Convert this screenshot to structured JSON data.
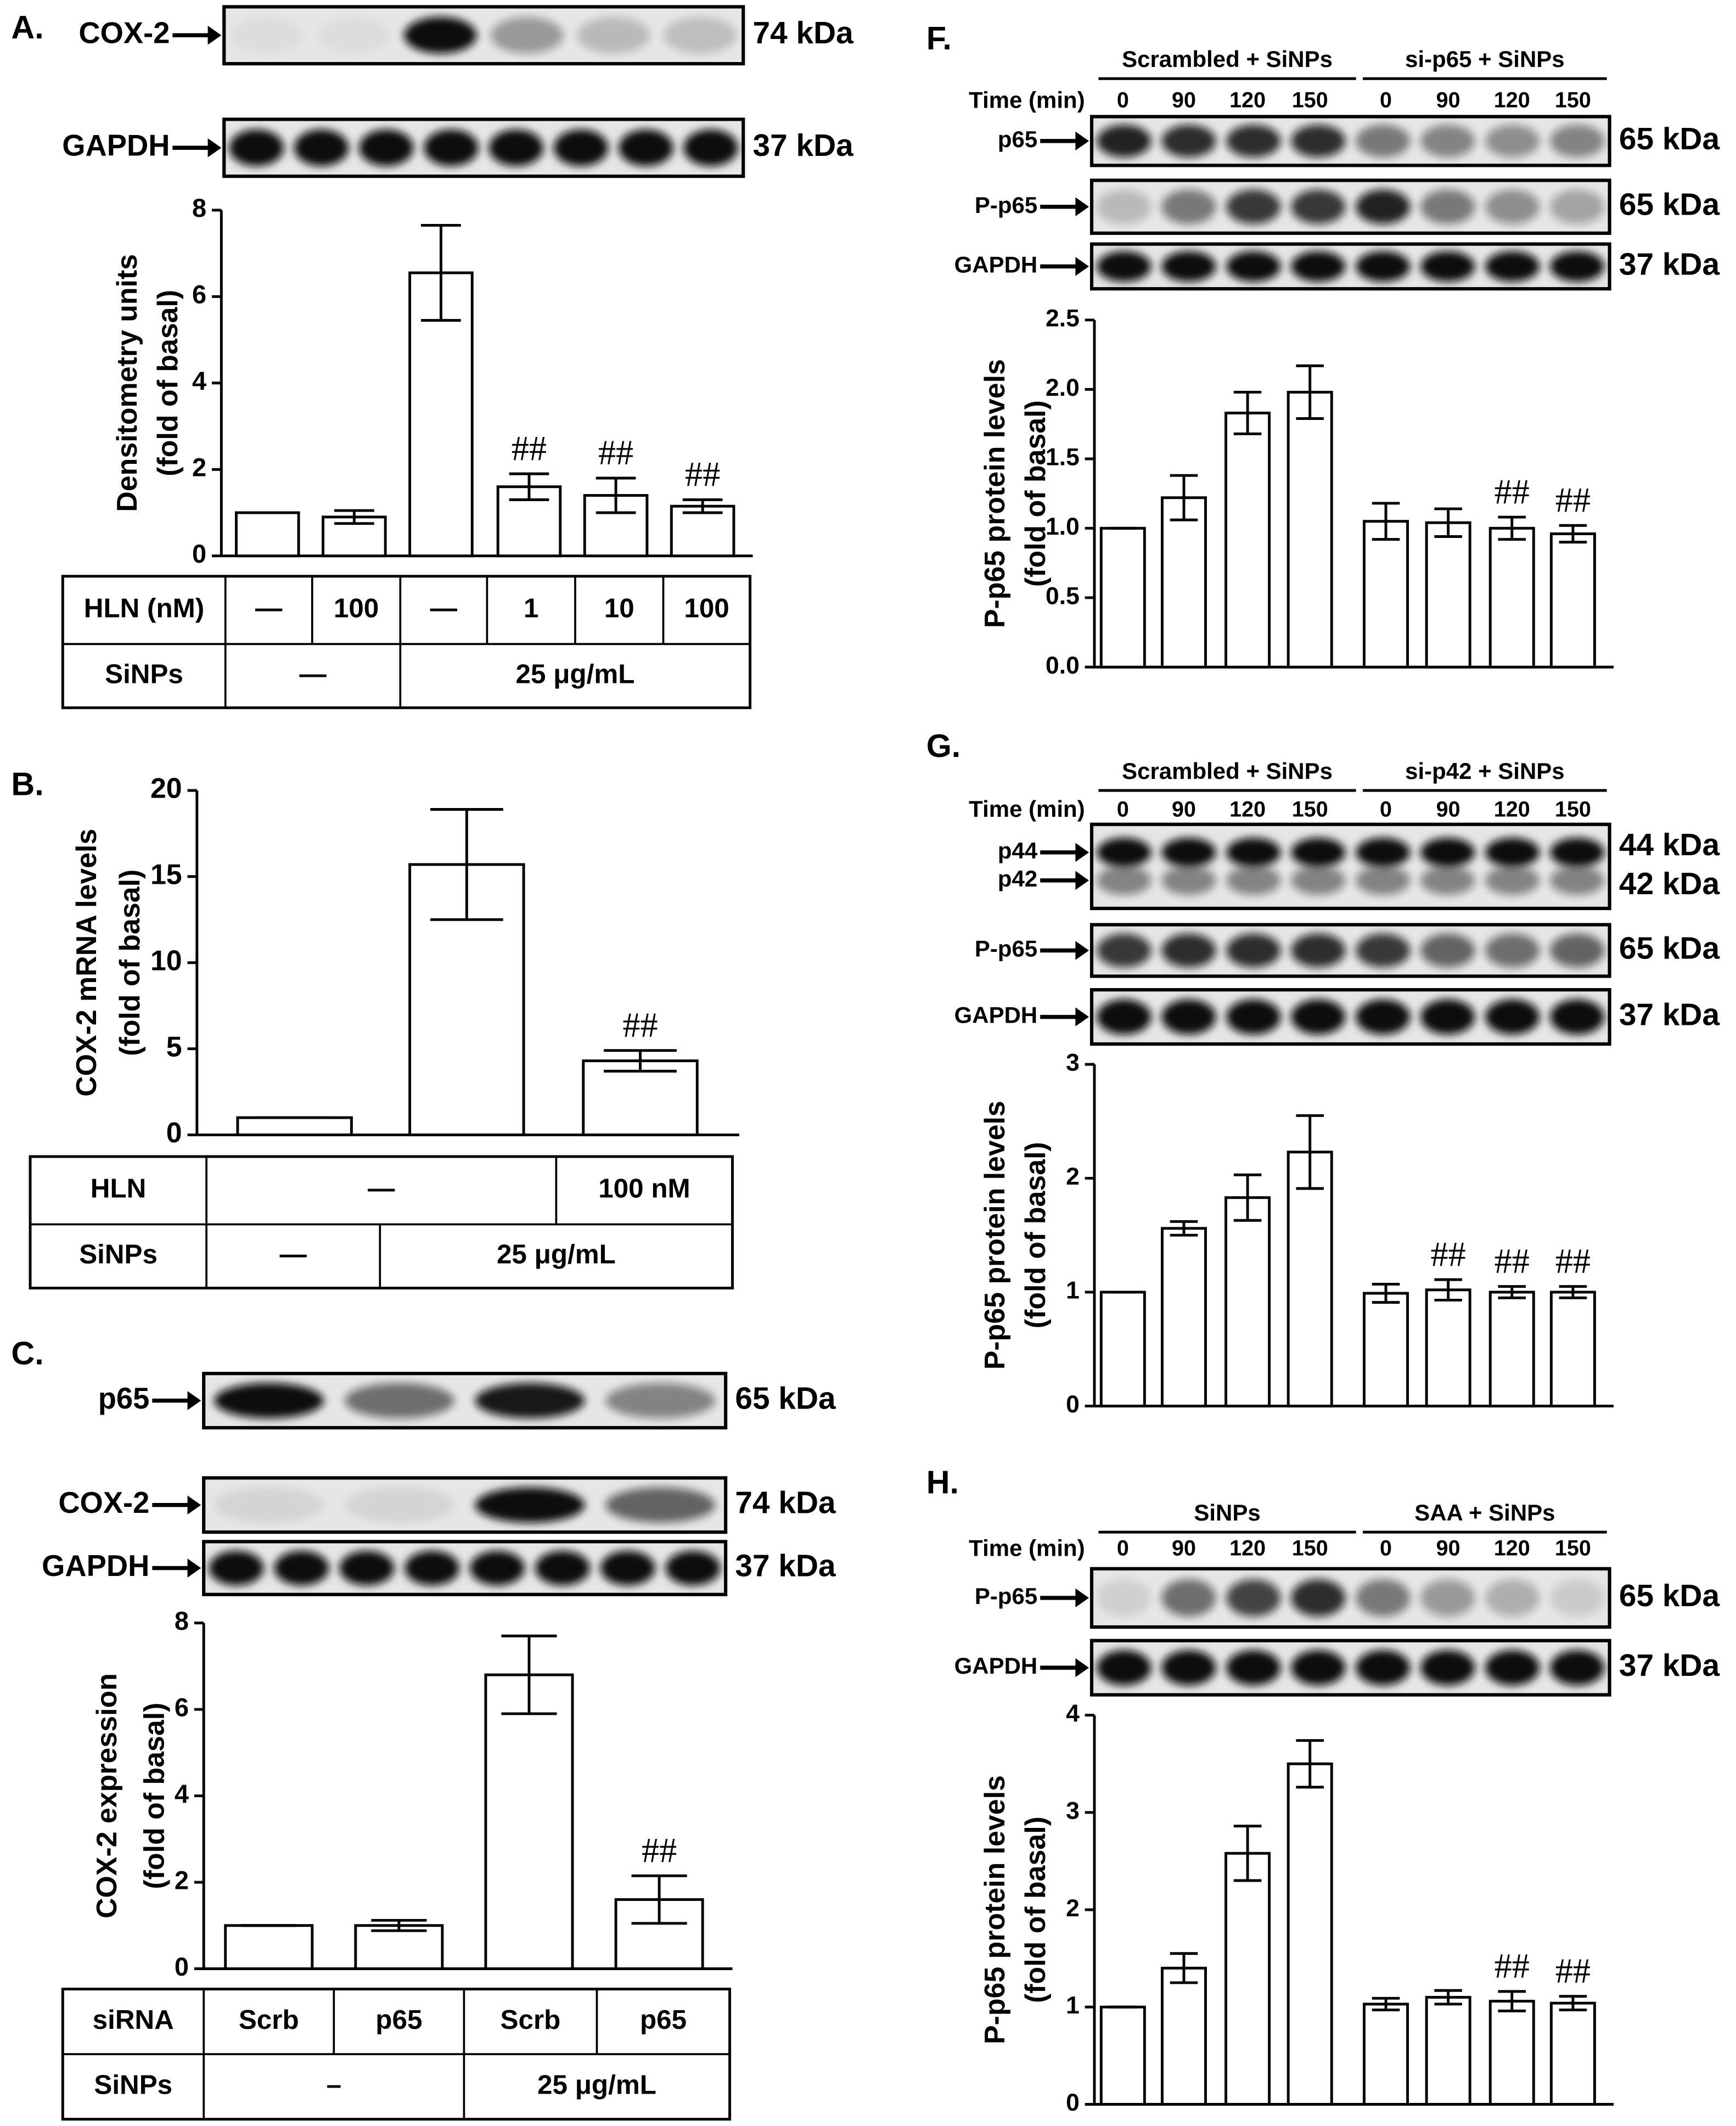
{
  "chart_data": [
    {
      "type": "bar",
      "panel_label": "A.",
      "blots": [
        {
          "labels": [
            "COX-2"
          ],
          "kda": [
            "74 kDa"
          ]
        },
        {
          "labels": [
            "GAPDH"
          ],
          "kda": [
            "37 kDa"
          ]
        }
      ],
      "ylabel": [
        "Densitometry units",
        "(fold of basal)"
      ],
      "values": [
        1,
        0.9,
        6.55,
        1.6,
        1.4,
        1.15
      ],
      "errors": [
        0,
        0.15,
        1.1,
        0.3,
        0.4,
        0.15
      ],
      "annotations": [
        null,
        null,
        null,
        "##",
        "##",
        "##"
      ],
      "color": "#ffffff",
      "ylim": [
        0,
        8
      ],
      "yticks": [
        0,
        2,
        4,
        6,
        8
      ],
      "table": [
        [
          "HLN (nM)",
          "—",
          "100",
          "—",
          "1",
          "10",
          "100"
        ],
        [
          "SiNPs",
          "—",
          "25 μg/mL"
        ]
      ]
    },
    {
      "type": "bar",
      "panel_label": "B.",
      "ylabel": [
        "COX-2 mRNA levels",
        "(fold of basal)"
      ],
      "values": [
        1,
        15.7,
        4.3
      ],
      "errors": [
        0,
        3.2,
        0.6
      ],
      "annotations": [
        null,
        null,
        "##"
      ],
      "color": "#ffffff",
      "ylim": [
        0,
        20
      ],
      "yticks": [
        0,
        5,
        10,
        15,
        20
      ],
      "table": [
        [
          "HLN",
          "—",
          "100 nM"
        ],
        [
          "SiNPs",
          "—",
          "25 μg/mL"
        ]
      ]
    },
    {
      "type": "bar",
      "panel_label": "C.",
      "blots": [
        {
          "labels": [
            "p65"
          ],
          "kda": [
            "65 kDa"
          ]
        },
        {
          "labels": [
            "COX-2"
          ],
          "kda": [
            "74 kDa"
          ]
        },
        {
          "labels": [
            "GAPDH"
          ],
          "kda": [
            "37 kDa"
          ]
        }
      ],
      "ylabel": [
        "COX-2 expression",
        "(fold of basal)"
      ],
      "values": [
        1,
        1,
        6.8,
        1.6
      ],
      "errors": [
        0,
        0.12,
        0.9,
        0.55
      ],
      "annotations": [
        null,
        null,
        null,
        "##"
      ],
      "color": "#ffffff",
      "ylim": [
        0,
        8
      ],
      "yticks": [
        0,
        2,
        4,
        6,
        8
      ],
      "table": [
        [
          "siRNA",
          "Scrb",
          "p65",
          "Scrb",
          "p65"
        ],
        [
          "SiNPs",
          "–",
          "25 μg/mL"
        ]
      ]
    },
    {
      "type": "bar",
      "panel_label": "F.",
      "groups": [
        "Scrambled + SiNPs",
        "si-p65 + SiNPs"
      ],
      "time_label": "Time (min)",
      "lanes": [
        "0",
        "90",
        "120",
        "150",
        "0",
        "90",
        "120",
        "150"
      ],
      "blots": [
        {
          "labels": [
            "p65"
          ],
          "kda": [
            "65 kDa"
          ]
        },
        {
          "labels": [
            "P-p65"
          ],
          "kda": [
            "65 kDa"
          ]
        },
        {
          "labels": [
            "GAPDH"
          ],
          "kda": [
            "37 kDa"
          ]
        }
      ],
      "ylabel": [
        "P-p65 protein levels",
        "(fold of basal)"
      ],
      "values": [
        1,
        1.22,
        1.83,
        1.98,
        1.05,
        1.04,
        1.0,
        0.96
      ],
      "errors": [
        0,
        0.16,
        0.15,
        0.19,
        0.13,
        0.1,
        0.08,
        0.06
      ],
      "annotations": [
        null,
        null,
        null,
        null,
        null,
        null,
        "##",
        "##"
      ],
      "color": "#ffffff",
      "ylim": [
        0,
        2.5
      ],
      "yticks": [
        {
          "value": 0,
          "label": "0.0"
        },
        0.5,
        {
          "value": 1,
          "label": "1.0"
        },
        1.5,
        {
          "value": 2,
          "label": "2.0"
        },
        2.5
      ]
    },
    {
      "type": "bar",
      "panel_label": "G.",
      "groups": [
        "Scrambled + SiNPs",
        "si-p42 + SiNPs"
      ],
      "time_label": "Time (min)",
      "lanes": [
        "0",
        "90",
        "120",
        "150",
        "0",
        "90",
        "120",
        "150"
      ],
      "blots": [
        {
          "labels": [
            "p44",
            "p42"
          ],
          "kda": [
            "44 kDa",
            "42 kDa"
          ]
        },
        {
          "labels": [
            "P-p65"
          ],
          "kda": [
            "65 kDa"
          ]
        },
        {
          "labels": [
            "GAPDH"
          ],
          "kda": [
            "37 kDa"
          ]
        }
      ],
      "ylabel": [
        "P-p65 protein levels",
        "(fold of basal)"
      ],
      "values": [
        1,
        1.56,
        1.83,
        2.23,
        0.99,
        1.02,
        1.0,
        1.0
      ],
      "errors": [
        0,
        0.06,
        0.2,
        0.32,
        0.08,
        0.09,
        0.05,
        0.05
      ],
      "annotations": [
        null,
        null,
        null,
        null,
        null,
        "##",
        "##",
        "##"
      ],
      "color": "#ffffff",
      "ylim": [
        0,
        3
      ],
      "yticks": [
        0,
        1,
        2,
        3
      ]
    },
    {
      "type": "bar",
      "panel_label": "H.",
      "groups": [
        "SiNPs",
        "SAA + SiNPs"
      ],
      "time_label": "Time (min)",
      "lanes": [
        "0",
        "90",
        "120",
        "150",
        "0",
        "90",
        "120",
        "150"
      ],
      "blots": [
        {
          "labels": [
            "P-p65"
          ],
          "kda": [
            "65 kDa"
          ]
        },
        {
          "labels": [
            "GAPDH"
          ],
          "kda": [
            "37 kDa"
          ]
        }
      ],
      "ylabel": [
        "P-p65 protein levels",
        "(fold of basal)"
      ],
      "values": [
        1,
        1.4,
        2.58,
        3.5,
        1.03,
        1.1,
        1.06,
        1.04
      ],
      "errors": [
        0,
        0.15,
        0.28,
        0.24,
        0.06,
        0.07,
        0.1,
        0.07
      ],
      "annotations": [
        null,
        null,
        null,
        null,
        null,
        null,
        "##",
        "##"
      ],
      "color": "#ffffff",
      "ylim": [
        0,
        4
      ],
      "yticks": [
        0,
        1,
        2,
        3,
        4
      ]
    }
  ]
}
